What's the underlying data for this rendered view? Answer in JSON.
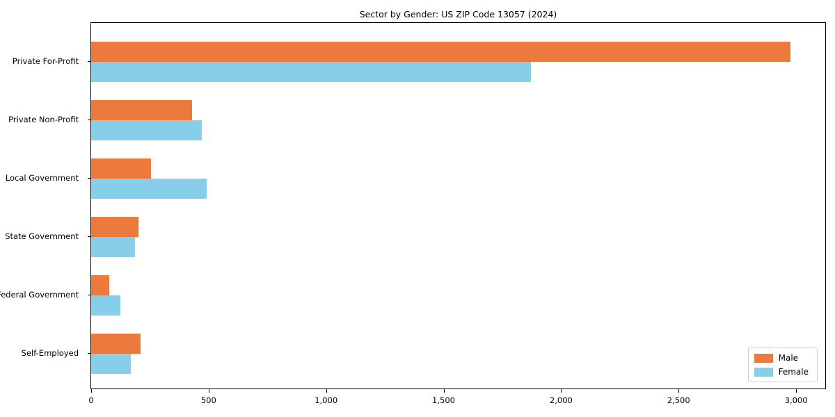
{
  "chart_data": {
    "type": "bar",
    "orientation": "horizontal",
    "title": "Sector by Gender: US ZIP Code 13057 (2024)",
    "categories": [
      "Private For-Profit",
      "Private Non-Profit",
      "Local Government",
      "State Government",
      "Federal Government",
      "Self-Employed"
    ],
    "series": [
      {
        "name": "Male",
        "color": "#EC7A3D",
        "values": [
          2975,
          430,
          255,
          200,
          78,
          210
        ]
      },
      {
        "name": "Female",
        "color": "#87CEEB",
        "values": [
          1870,
          470,
          490,
          185,
          125,
          170
        ]
      }
    ],
    "xlabel": "",
    "ylabel": "",
    "xlim": [
      0,
      3130
    ],
    "xticks": [
      0,
      500,
      1000,
      1500,
      2000,
      2500,
      3000
    ],
    "xtick_labels": [
      "0",
      "500",
      "1,000",
      "1,500",
      "2,000",
      "2,500",
      "3,000"
    ],
    "legend_position": "lower right",
    "grid": false,
    "background_color": "#ffffff",
    "axis_color": "#000000"
  }
}
